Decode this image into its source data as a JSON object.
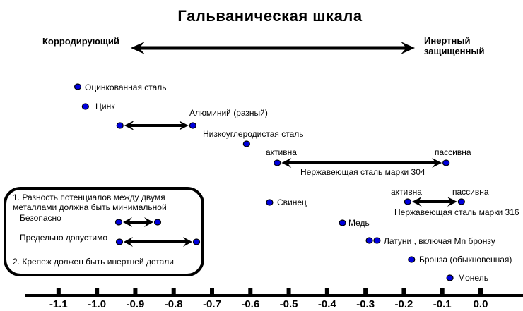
{
  "chart_data": {
    "type": "scatter",
    "title": "Гальваническая шкала",
    "orientation": "horizontal",
    "axis": {
      "min": -1.15,
      "max": 0.11,
      "ticks": [
        -1.1,
        -1.0,
        -0.9,
        -0.8,
        -0.7,
        -0.6,
        -0.5,
        -0.4,
        -0.3,
        -0.2,
        -0.1,
        0.0
      ],
      "grid": false
    },
    "direction_labels": {
      "left": "Корродирующий",
      "right_line1": "Инертный",
      "right_line2": "защищенный"
    },
    "points": [
      {
        "label": "Оцинкованная сталь",
        "value": -1.05
      },
      {
        "label": "Цинк",
        "value": -1.03
      },
      {
        "label": "Алюминий (разный)",
        "range": [
          -0.94,
          -0.75
        ]
      },
      {
        "label": "Низкоуглеродистая сталь",
        "value": -0.61
      },
      {
        "label": "Нержавеющая сталь марки 304",
        "range": [
          -0.53,
          -0.09
        ],
        "left_note": "активна",
        "right_note": "пассивна"
      },
      {
        "label": "Свинец",
        "value": -0.55
      },
      {
        "label": "Нержавеющая сталь марки 316",
        "range": [
          -0.19,
          -0.05
        ],
        "left_note": "активна",
        "right_note": "пассивна"
      },
      {
        "label": "Медь",
        "value": -0.36
      },
      {
        "label": "Латуни , включая Mn бронзу",
        "values": [
          -0.29,
          -0.27
        ]
      },
      {
        "label": "Бронза (обыкновенная)",
        "value": -0.18
      },
      {
        "label": "Монель",
        "value": -0.08
      }
    ]
  },
  "note_box": {
    "rule1": "1. Разность потенциалов между двумя металлами должна быть минимальной",
    "safe_label": "Безопасно",
    "max_label": "Предельно допустимо",
    "rule2": "2. Крепеж должен быть инертней детали"
  },
  "colors": {
    "dot": "#0000dd",
    "arrow": "#000000"
  }
}
